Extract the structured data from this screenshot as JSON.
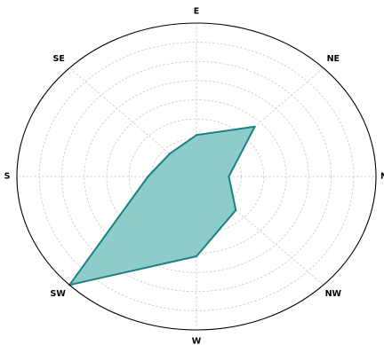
{
  "chart_data": {
    "type": "radar",
    "categories": [
      "N",
      "NE",
      "E",
      "SE",
      "S",
      "SW",
      "W",
      "NW"
    ],
    "series": [
      {
        "values": [
          0.18,
          0.46,
          0.27,
          0.21,
          0.27,
          1.0,
          0.52,
          0.31
        ],
        "fill": "#8ecccc",
        "edge": "#1a8080"
      }
    ],
    "rlim": [
      0,
      1
    ],
    "grid": true,
    "colors": {
      "area_fill": "#8ecccc",
      "area_edge": "#1a8080",
      "grid": "#c8c8c8",
      "frame": "#000000"
    }
  }
}
